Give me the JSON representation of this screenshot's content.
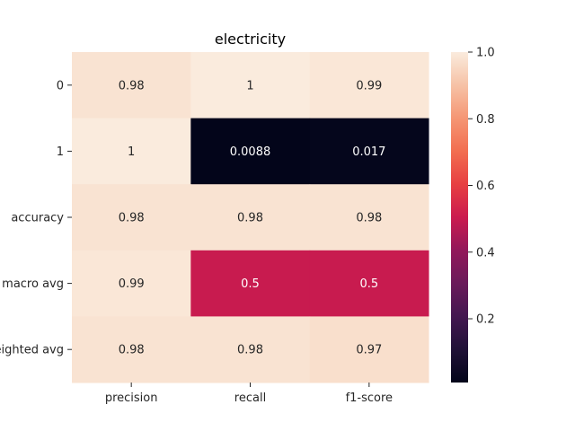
{
  "chart_data": {
    "type": "heatmap",
    "title": "electricity",
    "xlabel": "",
    "ylabel": "",
    "x_categories": [
      "precision",
      "recall",
      "f1-score"
    ],
    "y_categories": [
      "0",
      "1",
      "accuracy",
      "macro avg",
      "weighted avg"
    ],
    "values": [
      [
        0.98,
        1.0,
        0.99
      ],
      [
        1.0,
        0.0088,
        0.017
      ],
      [
        0.98,
        0.98,
        0.98
      ],
      [
        0.99,
        0.5,
        0.5
      ],
      [
        0.98,
        0.98,
        0.97
      ]
    ],
    "annotations": [
      [
        "0.98",
        "1",
        "0.99"
      ],
      [
        "1",
        "0.0088",
        "0.017"
      ],
      [
        "0.98",
        "0.98",
        "0.98"
      ],
      [
        "0.99",
        "0.5",
        "0.5"
      ],
      [
        "0.98",
        "0.98",
        "0.97"
      ]
    ],
    "colormap": "rocket",
    "colorbar": {
      "range": [
        0.0088,
        1.0
      ],
      "ticks": [
        0.2,
        0.4,
        0.6,
        0.8,
        1.0
      ],
      "tick_labels": [
        "0.2",
        "0.4",
        "0.6",
        "0.8",
        "1.0"
      ]
    },
    "grid": false
  }
}
